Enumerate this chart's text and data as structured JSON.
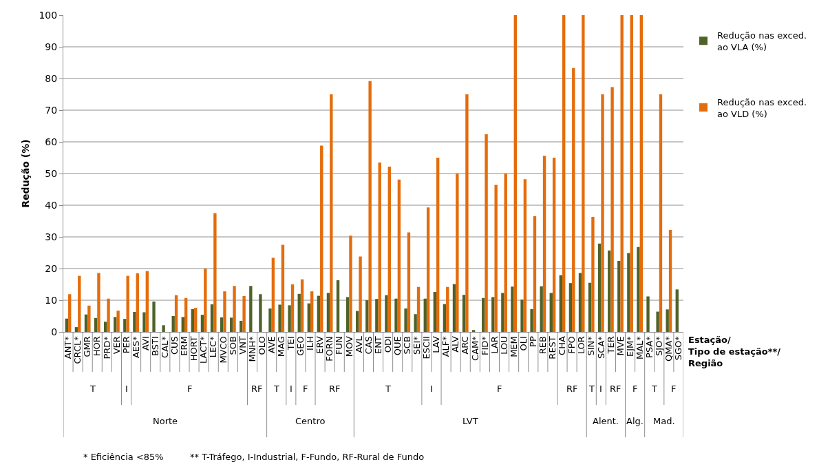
{
  "chart_data": {
    "type": "bar",
    "ylabel": "Redução (%)",
    "xlabel": "Estação/ Tipo de estação**/ Região",
    "categories": [
      "ANT*",
      "CRCL*",
      "GMR",
      "HOR",
      "PRD*",
      "VER",
      "PER",
      "AES*",
      "AVI",
      "BSTI",
      "CAL*",
      "CUS",
      "ERM",
      "HORT",
      "LACT*",
      "LEC*",
      "MVCO",
      "SOB",
      "VNT",
      "MNH*",
      "OLO",
      "AVE",
      "MAG",
      "TEI",
      "GEO",
      "ILH",
      "ERV",
      "FORN",
      "FUN",
      "MOV",
      "AVL",
      "CAS",
      "ENT",
      "ODI",
      "QUE",
      "SCB",
      "SEI*",
      "ESCII",
      "LAV",
      "ALF*",
      "ALV",
      "ARC",
      "CAM*",
      "FID*",
      "LAR",
      "LOU",
      "MEM",
      "OLI",
      "PP",
      "REB",
      "REST",
      "CHA",
      "FPO",
      "LOR",
      "SIN*",
      "SCA*",
      "TER",
      "MVE",
      "EJM*",
      "MAL*",
      "PSA*",
      "SJO*",
      "QMA*",
      "SGO*"
    ],
    "series": [
      {
        "name": "Redução nas exced. ao VLA (%)",
        "color": "#4f6228",
        "values": [
          4.2,
          1.5,
          5.5,
          4.4,
          3.2,
          4.7,
          4.1,
          6.3,
          6.2,
          9.6,
          2.1,
          5.0,
          4.7,
          7.2,
          5.4,
          8.7,
          4.6,
          4.5,
          3.5,
          14.5,
          11.9,
          7.4,
          8.6,
          8.4,
          12.0,
          9.0,
          11.4,
          12.3,
          16.3,
          11.0,
          6.6,
          10.0,
          10.4,
          11.6,
          10.5,
          7.4,
          5.6,
          10.5,
          12.6,
          8.8,
          15.1,
          11.7,
          0.6,
          10.7,
          11.0,
          12.3,
          14.3,
          10.2,
          7.2,
          14.4,
          12.3,
          17.9,
          15.4,
          18.6,
          15.5,
          27.9,
          25.7,
          22.4,
          24.9,
          26.8,
          11.2,
          6.4,
          7.1,
          13.4
        ]
      },
      {
        "name": "Redução nas exced. ao VLD (%)",
        "color": "#e46c0a",
        "values": [
          11.9,
          17.7,
          8.3,
          18.6,
          10.5,
          6.7,
          17.7,
          18.5,
          19.2,
          null,
          null,
          11.6,
          10.7,
          7.6,
          20.0,
          37.5,
          12.8,
          14.5,
          11.3,
          null,
          null,
          23.4,
          27.5,
          15.0,
          16.6,
          12.8,
          58.8,
          75.0,
          null,
          30.4,
          23.8,
          79.2,
          53.5,
          52.2,
          48.1,
          31.4,
          14.2,
          39.3,
          55.0,
          14.2,
          50.0,
          75.0,
          null,
          62.4,
          46.4,
          50.0,
          100,
          48.2,
          36.5,
          55.6,
          55.0,
          100,
          83.3,
          100,
          36.3,
          75.0,
          77.3,
          100,
          100,
          100,
          null,
          75.0,
          32.2,
          null
        ]
      }
    ],
    "ylim": [
      0,
      100
    ],
    "yticks": [
      0,
      10,
      20,
      30,
      40,
      50,
      60,
      70,
      80,
      90,
      100
    ],
    "grid": "y",
    "legend": "right",
    "annotations": [
      "T",
      "I",
      "F",
      "RF",
      "T",
      "I",
      "F",
      "RF",
      "T",
      "I",
      "F",
      "RF",
      "T",
      "I",
      "RF",
      "F",
      "T",
      "F",
      "Norte",
      "Centro",
      "LVT",
      "Alent.",
      "Alg.",
      "Mad.",
      "* Eficiência <85%",
      "** T-Tráfego, I-Industrial, F-Fundo, RF-Rural de Fundo"
    ]
  }
}
